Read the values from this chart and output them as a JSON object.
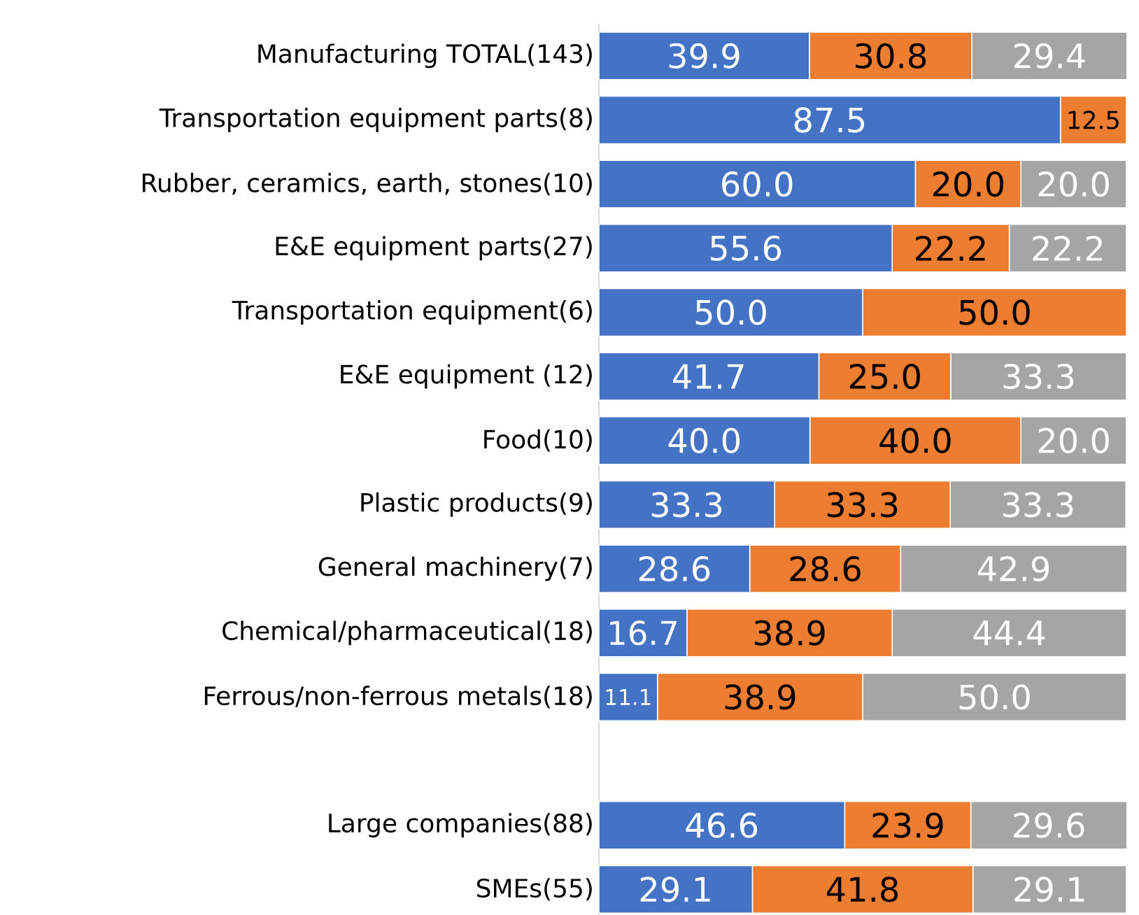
{
  "chart_data": {
    "type": "bar",
    "orientation": "horizontal",
    "stacked": true,
    "xlim": [
      0,
      100
    ],
    "tick_labels": "y",
    "categories": [
      "Manufacturing TOTAL(143)",
      "Transportation equipment parts(8)",
      "Rubber, ceramics, earth, stones(10)",
      "E&E equipment parts(27)",
      "Transportation equipment(6)",
      "E&E equipment (12)",
      "Food(10)",
      "Plastic products(9)",
      "General machinery(7)",
      "Chemical/pharmaceutical(18)",
      "Ferrous/non-ferrous metals(18)",
      null,
      "Large companies(88)",
      "SMEs(55)"
    ],
    "series": [
      {
        "color": "#4472c4",
        "values": [
          39.9,
          87.5,
          60.0,
          55.6,
          50.0,
          41.7,
          40.0,
          33.3,
          28.6,
          16.7,
          11.1,
          null,
          46.6,
          29.1
        ],
        "value_labels": [
          "39.9",
          "87.5",
          "60.0",
          "55.6",
          "50.0",
          "41.7",
          "40.0",
          "33.3",
          "28.6",
          "16.7",
          "11.1",
          null,
          "46.6",
          "29.1"
        ]
      },
      {
        "color": "#ed7d31",
        "values": [
          30.8,
          12.5,
          20.0,
          22.2,
          50.0,
          25.0,
          40.0,
          33.3,
          28.6,
          38.9,
          38.9,
          null,
          23.9,
          41.8
        ],
        "value_labels": [
          "30.8",
          "12.5",
          "20.0",
          "22.2",
          "50.0",
          "25.0",
          "40.0",
          "33.3",
          "28.6",
          "38.9",
          "38.9",
          null,
          "23.9",
          "41.8"
        ]
      },
      {
        "color": "#a5a5a5",
        "values": [
          29.4,
          0,
          20.0,
          22.2,
          0,
          33.3,
          20.0,
          33.3,
          42.9,
          44.4,
          50.0,
          null,
          29.6,
          29.1
        ],
        "value_labels": [
          "29.4",
          null,
          "20.0",
          "22.2",
          null,
          "33.3",
          "20.0",
          "33.3",
          "42.9",
          "44.4",
          "50.0",
          null,
          "29.6",
          "29.1"
        ]
      }
    ]
  }
}
